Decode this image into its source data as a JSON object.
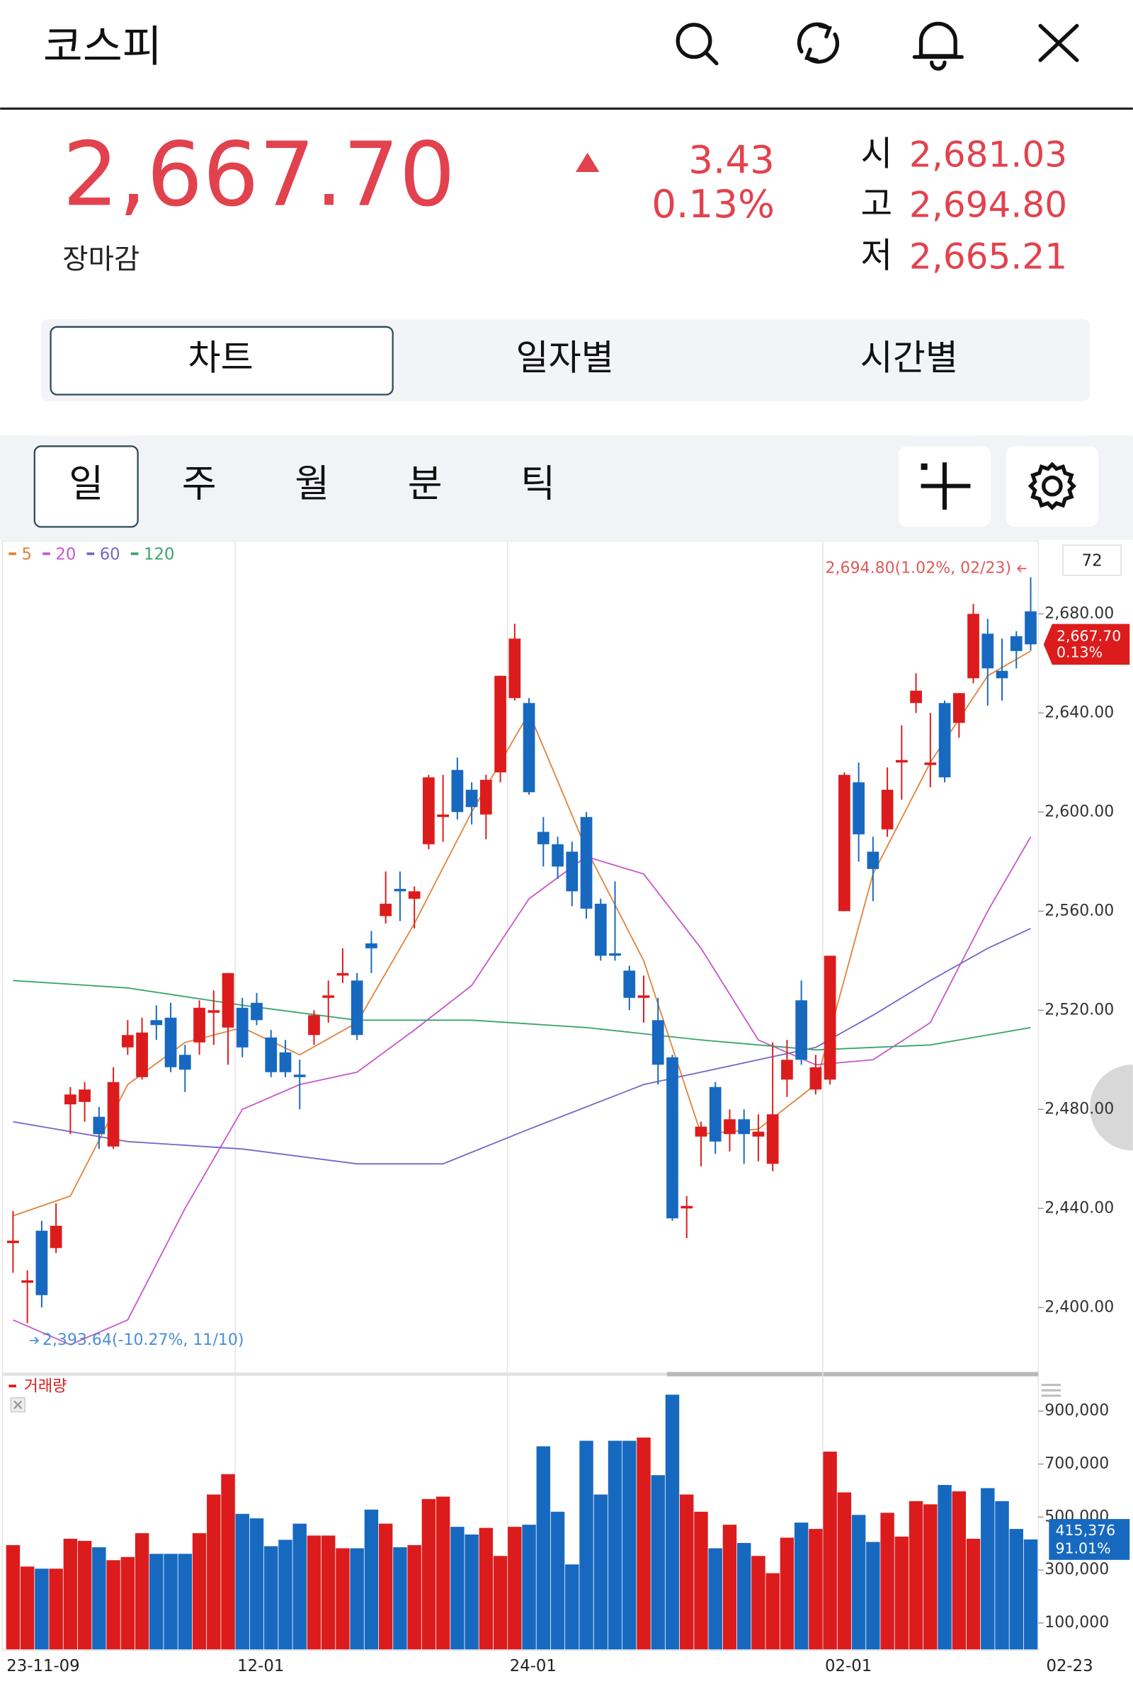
{
  "header": {
    "title": "코스피"
  },
  "quote": {
    "price": "2,667.70",
    "status": "장마감",
    "change": "3.43",
    "change_pct": "0.13%",
    "open_label": "시",
    "open": "2,681.03",
    "high_label": "고",
    "high": "2,694.80",
    "low_label": "저",
    "low": "2,665.21"
  },
  "tabs": [
    "차트",
    "일자별",
    "시간별"
  ],
  "periods": [
    "일",
    "주",
    "월",
    "분",
    "틱"
  ],
  "chart_data": [
    {
      "type": "candlestick",
      "count": 72,
      "up_color": "#dc1c1c",
      "down_color": "#1769c0",
      "ylim": [
        2374.4,
        2708.6
      ],
      "yticks": [
        {
          "value": 2400,
          "label": "2,400.00"
        },
        {
          "value": 2440,
          "label": "2,440.00"
        },
        {
          "value": 2480,
          "label": "2,480.00"
        },
        {
          "value": 2520,
          "label": "2,520.00"
        },
        {
          "value": 2560,
          "label": "2,560.00"
        },
        {
          "value": 2600,
          "label": "2,600.00"
        },
        {
          "value": 2640,
          "label": "2,640.00"
        },
        {
          "value": 2680,
          "label": "2,680.00"
        }
      ],
      "open": [
        2426,
        2410,
        2431,
        2424,
        2482,
        2483,
        2477,
        2465,
        2505,
        2493,
        2516,
        2517,
        2502,
        2507,
        2519,
        2513,
        2521,
        2523,
        2509,
        2503,
        2494,
        2510,
        2525,
        2534,
        2532,
        2547,
        2558,
        2569,
        2565,
        2587,
        2598,
        2617,
        2609,
        2599,
        2616,
        2646,
        2644,
        2592,
        2587,
        2584,
        2598,
        2563,
        2543,
        2536,
        2525,
        2516,
        2501,
        2440,
        2469,
        2489,
        2470,
        2476,
        2469,
        2458,
        2492,
        2524,
        2488,
        2492,
        2560,
        2612,
        2584,
        2593,
        2620,
        2644,
        2619,
        2644,
        2636,
        2654,
        2672,
        2657,
        2671,
        2681.03
      ],
      "high": [
        2439,
        2415,
        2435,
        2442,
        2489,
        2491,
        2481,
        2497,
        2516,
        2517,
        2522,
        2523,
        2506,
        2524,
        2528,
        2535,
        2525,
        2527,
        2512,
        2508,
        2500,
        2520,
        2532,
        2545,
        2535,
        2552,
        2576,
        2576,
        2570,
        2615,
        2615,
        2622,
        2612,
        2615,
        2655,
        2676,
        2646,
        2598,
        2590,
        2588,
        2600,
        2565,
        2572,
        2538,
        2534,
        2525,
        2502,
        2445,
        2475,
        2491,
        2480,
        2480,
        2478,
        2507,
        2508,
        2532,
        2502,
        2542,
        2616,
        2620,
        2590,
        2618,
        2635,
        2656,
        2640,
        2645,
        2648,
        2684,
        2678,
        2670,
        2673,
        2694.8
      ],
      "low": [
        2414,
        2393.64,
        2400,
        2422,
        2470,
        2475,
        2464,
        2464,
        2502,
        2492,
        2508,
        2495,
        2487,
        2502,
        2506,
        2498,
        2501,
        2514,
        2493,
        2493,
        2480,
        2506,
        2515,
        2531,
        2508,
        2535,
        2555,
        2556,
        2553,
        2585,
        2588,
        2597,
        2595,
        2589,
        2612,
        2645,
        2607,
        2578,
        2573,
        2562,
        2557,
        2540,
        2540,
        2520,
        2515,
        2490,
        2435,
        2428,
        2457,
        2462,
        2463,
        2458,
        2459,
        2455,
        2485,
        2498,
        2486,
        2490,
        2560,
        2580,
        2564,
        2590,
        2605,
        2640,
        2610,
        2612,
        2630,
        2652,
        2643,
        2645,
        2658,
        2665.21
      ],
      "close": [
        2427,
        2411,
        2405,
        2433,
        2486,
        2488,
        2470,
        2491,
        2510,
        2511,
        2514,
        2497,
        2496,
        2521,
        2520,
        2535,
        2505,
        2516,
        2495,
        2495,
        2493,
        2518,
        2526,
        2535,
        2510,
        2545,
        2563,
        2568,
        2568,
        2614,
        2599,
        2600,
        2602,
        2613,
        2655,
        2670,
        2608,
        2587,
        2578,
        2568,
        2561,
        2542,
        2542,
        2525,
        2526,
        2498,
        2436,
        2441,
        2473,
        2467,
        2476,
        2470,
        2471,
        2478,
        2500,
        2500,
        2497,
        2542,
        2615,
        2591,
        2577,
        2609,
        2621,
        2649,
        2620,
        2614,
        2648,
        2680,
        2658,
        2654,
        2665,
        2667.7
      ],
      "series": [
        {
          "name": "5",
          "color": "#e0843c",
          "x": [
            0,
            4,
            8,
            12,
            16,
            20,
            24,
            28,
            32,
            36,
            40,
            44,
            48,
            52,
            56,
            60,
            64,
            68,
            71
          ],
          "values": [
            2437,
            2445,
            2490,
            2507,
            2513,
            2502,
            2515,
            2555,
            2600,
            2640,
            2585,
            2540,
            2470,
            2472,
            2490,
            2575,
            2620,
            2655,
            2665
          ]
        },
        {
          "name": "20",
          "color": "#c858c8",
          "x": [
            0,
            4,
            8,
            12,
            16,
            20,
            24,
            28,
            32,
            36,
            40,
            44,
            48,
            52,
            56,
            60,
            64,
            68,
            71
          ],
          "values": [
            2395,
            2385,
            2395,
            2440,
            2480,
            2490,
            2495,
            2512,
            2530,
            2565,
            2582,
            2575,
            2545,
            2508,
            2498,
            2500,
            2515,
            2560,
            2590
          ]
        },
        {
          "name": "60",
          "color": "#7468c8",
          "x": [
            0,
            8,
            16,
            24,
            30,
            36,
            44,
            52,
            56,
            60,
            64,
            68,
            71
          ],
          "values": [
            2475,
            2467,
            2464,
            2458,
            2458,
            2472,
            2490,
            2500,
            2505,
            2518,
            2532,
            2545,
            2553
          ]
        },
        {
          "name": "120",
          "color": "#3aa46a",
          "x": [
            0,
            8,
            16,
            24,
            32,
            40,
            48,
            56,
            60,
            64,
            68,
            71
          ],
          "values": [
            2532,
            2529,
            2522,
            2516,
            2516,
            2513,
            2508,
            2504,
            2505,
            2506,
            2510,
            2513
          ]
        }
      ],
      "high_annotation": "2,694.80(1.02%, 02/23)",
      "low_annotation": "2,393.64(-10.27%, 11/10)",
      "last_price_label": "2,667.70",
      "last_change_label": "0.13%"
    },
    {
      "type": "bar",
      "title": "거래량",
      "categories": [
        "23-11-09",
        null,
        null,
        null,
        null,
        null,
        null,
        null,
        null,
        null,
        null,
        null,
        null,
        null,
        null,
        null,
        "12-01",
        null,
        null,
        null,
        null,
        null,
        null,
        null,
        null,
        null,
        null,
        null,
        null,
        null,
        null,
        null,
        null,
        null,
        null,
        "24-01",
        null,
        null,
        null,
        null,
        null,
        null,
        null,
        null,
        null,
        null,
        null,
        null,
        null,
        null,
        null,
        null,
        null,
        null,
        null,
        null,
        null,
        "02-01",
        null,
        null,
        null,
        null,
        null,
        null,
        null,
        null,
        null,
        null,
        null,
        null,
        null,
        "02-23"
      ],
      "values": [
        394000,
        313000,
        305000,
        305000,
        418000,
        410000,
        386000,
        337000,
        349000,
        439000,
        361000,
        361000,
        361000,
        439000,
        585000,
        662000,
        512000,
        495000,
        390000,
        414000,
        475000,
        430000,
        430000,
        382000,
        382000,
        528000,
        475000,
        386000,
        394000,
        568000,
        577000,
        463000,
        434000,
        459000,
        353000,
        463000,
        471000,
        767000,
        520000,
        321000,
        788000,
        585000,
        788000,
        788000,
        800000,
        658000,
        962000,
        585000,
        520000,
        382000,
        471000,
        402000,
        353000,
        288000,
        422000,
        479000,
        455000,
        747000,
        593000,
        508000,
        406000,
        516000,
        426000,
        560000,
        548000,
        621000,
        597000,
        418000,
        609000,
        560000,
        455000,
        415376
      ],
      "ylim": [
        0,
        1011000
      ],
      "yticks": [
        {
          "value": 100000,
          "label": "100,000"
        },
        {
          "value": 300000,
          "label": "300,000"
        },
        {
          "value": 500000,
          "label": "500,000"
        },
        {
          "value": 700000,
          "label": "700,000"
        },
        {
          "value": 900000,
          "label": "900,000"
        }
      ],
      "last_value_label": "415,376",
      "last_ratio_label": "91.01%"
    }
  ]
}
